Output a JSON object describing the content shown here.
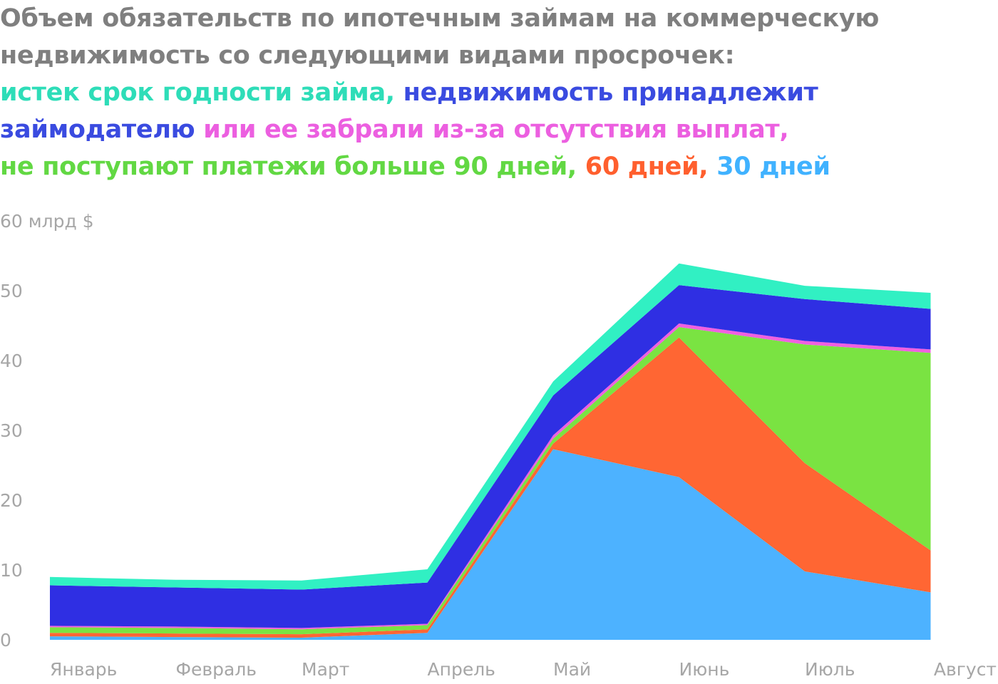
{
  "title": {
    "lines": [
      [
        {
          "text": "Объем обязательств по ипотечным займам на коммерческую",
          "color": "#7f7f7f"
        }
      ],
      [
        {
          "text": "недвижимость со следующими видами просрочек:",
          "color": "#7f7f7f"
        }
      ],
      [
        {
          "text": "истек срок годности займа,",
          "color": "#2eddb8"
        },
        {
          "text": " недвижимость принадлежит",
          "color": "#3a4be0"
        }
      ],
      [
        {
          "text": "займодателю",
          "color": "#3a4be0"
        },
        {
          "text": " или ее забрали из-за отсутствия выплат,",
          "color": "#ec5fe0"
        }
      ],
      [
        {
          "text": "не поступают платежи больше 90 дней,",
          "color": "#62d843"
        },
        {
          "text": " 60 дней,",
          "color": "#ff5f2e"
        },
        {
          "text": " 30 дней",
          "color": "#40b2ff"
        }
      ]
    ]
  },
  "chart_data": {
    "type": "area",
    "stacked": true,
    "categories": [
      "Январь",
      "Февраль",
      "Март",
      "Апрель",
      "Май",
      "Июнь",
      "Июль",
      "Август"
    ],
    "y_unit_label": "60 млрд $",
    "y_ticks": [
      "0",
      "10",
      "20",
      "30",
      "40",
      "50"
    ],
    "ylim": [
      0,
      60
    ],
    "grid": false,
    "series": [
      {
        "name": "30 дней",
        "color": "#4db2ff",
        "values": [
          0.5,
          0.4,
          0.3,
          1.0,
          27.3,
          23.3,
          9.8,
          6.8
        ]
      },
      {
        "name": "60 дней",
        "color": "#ff6633",
        "values": [
          0.5,
          0.5,
          0.5,
          0.5,
          0.8,
          20.0,
          15.5,
          6.0
        ]
      },
      {
        "name": "90 дней",
        "color": "#7ae342",
        "values": [
          0.8,
          0.8,
          0.7,
          0.6,
          0.7,
          1.5,
          17.0,
          28.3
        ]
      },
      {
        "name": "или ее забрали из-за отсутствия выплат",
        "color": "#f060e0",
        "values": [
          0.2,
          0.2,
          0.2,
          0.2,
          0.5,
          0.5,
          0.5,
          0.5
        ]
      },
      {
        "name": "недвижимость принадлежит займодателю",
        "color": "#2f2fe3",
        "values": [
          5.8,
          5.6,
          5.5,
          5.9,
          5.7,
          5.5,
          6.0,
          5.8
        ]
      },
      {
        "name": "истек срок годности займа",
        "color": "#31f0c3",
        "values": [
          1.2,
          1.1,
          1.3,
          1.9,
          2.0,
          3.1,
          1.9,
          2.3
        ]
      }
    ]
  }
}
